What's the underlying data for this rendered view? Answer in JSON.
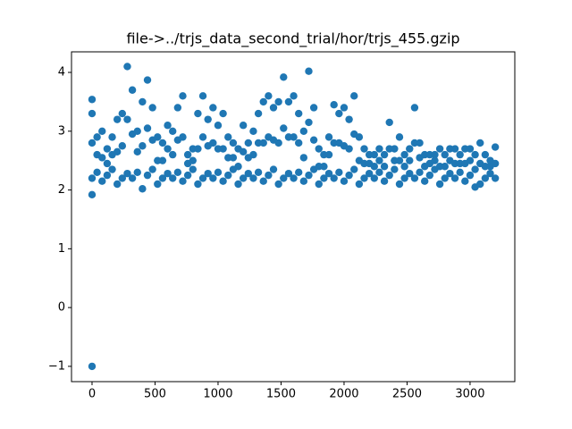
{
  "chart_data": {
    "type": "scatter",
    "title": "file->../trjs_data_second_trial/hor/trjs_455.gzip",
    "color": "#1f77b4",
    "x": [
      0,
      0,
      0,
      0,
      0,
      0,
      40,
      40,
      40,
      80,
      80,
      80,
      120,
      120,
      120,
      160,
      160,
      160,
      200,
      200,
      200,
      240,
      240,
      240,
      280,
      280,
      280,
      320,
      320,
      320,
      360,
      360,
      360,
      400,
      400,
      400,
      440,
      440,
      440,
      480,
      480,
      480,
      520,
      520,
      520,
      560,
      560,
      560,
      600,
      600,
      600,
      640,
      640,
      640,
      680,
      680,
      680,
      720,
      720,
      720,
      760,
      760,
      760,
      800,
      800,
      800,
      840,
      840,
      840,
      880,
      880,
      880,
      920,
      920,
      920,
      960,
      960,
      960,
      1000,
      1000,
      1000,
      1040,
      1040,
      1040,
      1080,
      1080,
      1080,
      1120,
      1120,
      1120,
      1160,
      1160,
      1160,
      1200,
      1200,
      1200,
      1240,
      1240,
      1240,
      1280,
      1280,
      1280,
      1320,
      1320,
      1320,
      1360,
      1360,
      1360,
      1400,
      1400,
      1400,
      1440,
      1440,
      1440,
      1480,
      1480,
      1480,
      1520,
      1520,
      1520,
      1560,
      1560,
      1560,
      1600,
      1600,
      1600,
      1640,
      1640,
      1640,
      1680,
      1680,
      1680,
      1720,
      1720,
      1720,
      1760,
      1760,
      1760,
      1800,
      1800,
      1800,
      1840,
      1840,
      1840,
      1880,
      1880,
      1880,
      1920,
      1920,
      1920,
      1960,
      1960,
      1960,
      2000,
      2000,
      2000,
      2040,
      2040,
      2040,
      2080,
      2080,
      2080,
      2120,
      2120,
      2120,
      2160,
      2160,
      2160,
      2200,
      2200,
      2200,
      2240,
      2240,
      2240,
      2280,
      2280,
      2280,
      2320,
      2320,
      2320,
      2360,
      2360,
      2360,
      2400,
      2400,
      2400,
      2440,
      2440,
      2440,
      2480,
      2480,
      2480,
      2520,
      2520,
      2520,
      2560,
      2560,
      2560,
      2600,
      2600,
      2600,
      2640,
      2640,
      2640,
      2680,
      2680,
      2680,
      2720,
      2720,
      2720,
      2760,
      2760,
      2760,
      2800,
      2800,
      2800,
      2840,
      2840,
      2840,
      2880,
      2880,
      2880,
      2920,
      2920,
      2920,
      2960,
      2960,
      2960,
      3000,
      3000,
      3000,
      3040,
      3040,
      3040,
      3080,
      3080,
      3080,
      3120,
      3120,
      3120,
      3160,
      3160,
      3160,
      3200,
      3200,
      3200
    ],
    "values": [
      3.54,
      3.3,
      2.8,
      2.2,
      1.92,
      -1,
      2.9,
      2.6,
      2.3,
      3.0,
      2.55,
      2.15,
      2.7,
      2.45,
      2.25,
      2.9,
      2.6,
      2.35,
      3.2,
      2.65,
      2.1,
      3.3,
      2.75,
      2.2,
      4.1,
      3.2,
      2.28,
      3.7,
      2.95,
      2.2,
      3.0,
      2.65,
      2.3,
      3.5,
      2.75,
      2.02,
      3.87,
      3.05,
      2.25,
      3.4,
      2.85,
      2.35,
      2.9,
      2.5,
      2.1,
      2.8,
      2.5,
      2.2,
      3.1,
      2.7,
      2.28,
      3.0,
      2.6,
      2.2,
      3.4,
      2.85,
      2.3,
      3.6,
      2.9,
      2.15,
      2.6,
      2.45,
      2.25,
      2.7,
      2.5,
      2.35,
      3.3,
      2.7,
      2.1,
      3.6,
      2.9,
      2.2,
      3.2,
      2.75,
      2.28,
      3.4,
      2.8,
      2.2,
      3.1,
      2.7,
      2.3,
      3.3,
      2.7,
      2.15,
      2.9,
      2.55,
      2.25,
      2.8,
      2.55,
      2.35,
      2.7,
      2.4,
      2.1,
      3.1,
      2.65,
      2.2,
      2.8,
      2.55,
      2.28,
      3.0,
      2.6,
      2.2,
      3.3,
      2.8,
      2.3,
      3.5,
      2.8,
      2.15,
      3.6,
      2.9,
      2.25,
      3.4,
      2.85,
      2.35,
      3.5,
      2.8,
      2.1,
      3.92,
      3.05,
      2.2,
      3.5,
      2.9,
      2.28,
      3.6,
      2.9,
      2.2,
      3.3,
      2.8,
      2.3,
      3.0,
      2.55,
      2.15,
      4.02,
      3.15,
      2.25,
      3.4,
      2.85,
      2.35,
      2.7,
      2.4,
      2.1,
      2.6,
      2.4,
      2.2,
      2.9,
      2.6,
      2.28,
      3.45,
      2.8,
      2.2,
      3.3,
      2.8,
      2.3,
      3.4,
      2.75,
      2.15,
      3.2,
      2.7,
      2.25,
      3.6,
      2.95,
      2.35,
      2.9,
      2.5,
      2.1,
      2.7,
      2.45,
      2.2,
      2.6,
      2.45,
      2.28,
      2.6,
      2.4,
      2.2,
      2.7,
      2.5,
      2.3,
      2.6,
      2.4,
      2.15,
      3.15,
      2.7,
      2.25,
      2.7,
      2.5,
      2.35,
      2.9,
      2.5,
      2.1,
      2.6,
      2.4,
      2.2,
      2.7,
      2.5,
      2.28,
      3.4,
      2.8,
      2.2,
      2.8,
      2.55,
      2.3,
      2.6,
      2.4,
      2.15,
      2.6,
      2.45,
      2.25,
      2.6,
      2.5,
      2.35,
      2.7,
      2.4,
      2.1,
      2.6,
      2.4,
      2.2,
      2.7,
      2.5,
      2.28,
      2.7,
      2.45,
      2.2,
      2.6,
      2.45,
      2.3,
      2.7,
      2.45,
      2.15,
      2.7,
      2.5,
      2.25,
      2.6,
      2.35,
      2.05,
      2.8,
      2.45,
      2.1,
      2.6,
      2.4,
      2.2,
      2.5,
      2.4,
      2.28,
      2.73,
      2.45,
      2.2
    ],
    "xlim": [
      -163,
      3355
    ],
    "xticks": [
      0,
      500,
      1000,
      1500,
      2000,
      2500,
      3000
    ],
    "ylim": [
      -1.26,
      4.35
    ],
    "yticks": [
      {
        "value": -1,
        "label": "−1"
      },
      0,
      1,
      2,
      3,
      4
    ]
  }
}
